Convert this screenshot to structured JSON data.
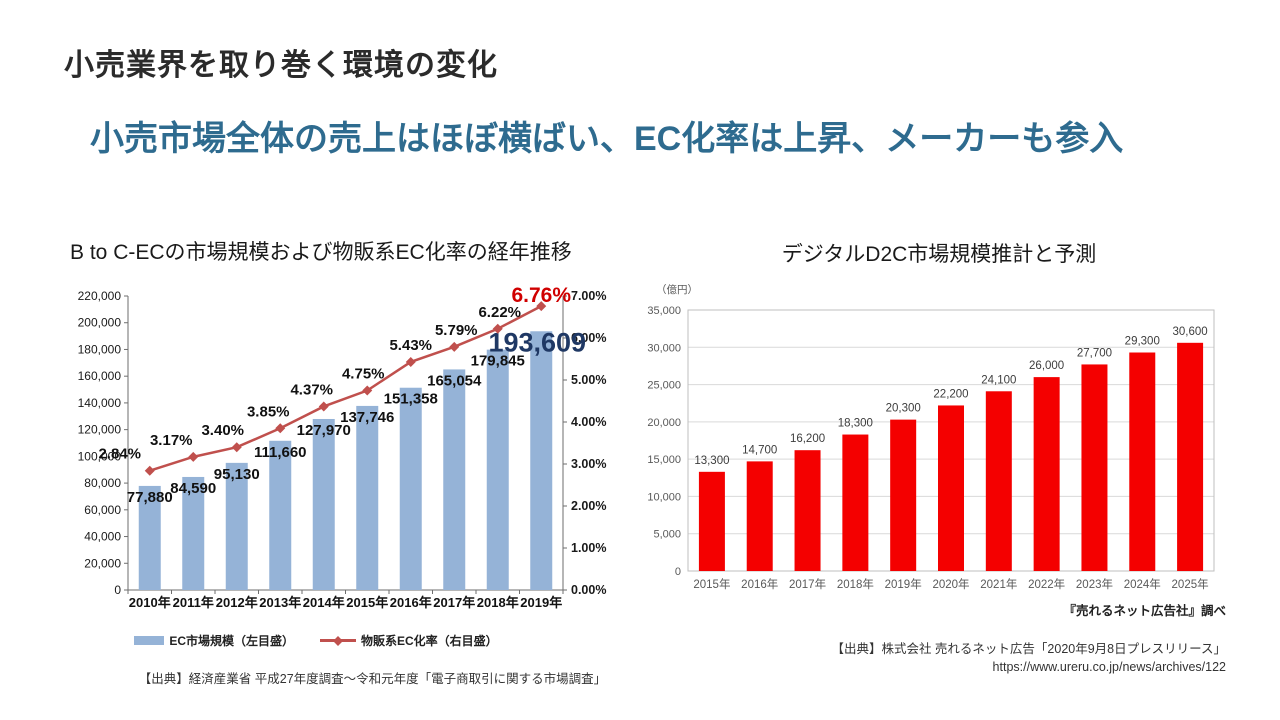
{
  "slide": {
    "title": "小売業界を取り巻く環境の変化",
    "subtitle": "小売市場全体の売上はほぼ横ばい、EC化率は上昇、メーカーも参入",
    "title_color": "#2b2b2b",
    "subtitle_color": "#2e6b8f"
  },
  "chart_data": [
    {
      "id": "btoc-ec-combo",
      "type": "bar+line",
      "title": "B to C-ECの市場規模および物販系EC化率の経年推移",
      "categories": [
        "2010年",
        "2011年",
        "2012年",
        "2013年",
        "2014年",
        "2015年",
        "2016年",
        "2017年",
        "2018年",
        "2019年"
      ],
      "series": [
        {
          "name": "EC市場規模（左目盛）",
          "type": "bar",
          "axis": "left",
          "color": "#95B3D7",
          "values": [
            77880,
            84590,
            95130,
            111660,
            127970,
            137746,
            151358,
            165054,
            179845,
            193609
          ],
          "labels": [
            "77,880",
            "84,590",
            "95,130",
            "111,660",
            "127,970",
            "137,746",
            "151,358",
            "165,054",
            "179,845",
            "193,609"
          ]
        },
        {
          "name": "物販系EC化率（右目盛）",
          "type": "line",
          "axis": "right",
          "color": "#C0504D",
          "values": [
            2.84,
            3.17,
            3.4,
            3.85,
            4.37,
            4.75,
            5.43,
            5.79,
            6.22,
            6.76
          ],
          "labels": [
            "2.84%",
            "3.17%",
            "3.40%",
            "3.85%",
            "4.37%",
            "4.75%",
            "5.43%",
            "5.79%",
            "6.22%",
            "6.76%"
          ]
        }
      ],
      "left_axis": {
        "min": 0,
        "max": 220000,
        "step": 20000,
        "tick_labels": [
          "0",
          "20,000",
          "40,000",
          "60,000",
          "80,000",
          "100,000",
          "120,000",
          "140,000",
          "160,000",
          "180,000",
          "200,000",
          "220,000"
        ]
      },
      "right_axis": {
        "min": 0,
        "max": 7,
        "step": 1,
        "tick_labels": [
          "0.00%",
          "1.00%",
          "2.00%",
          "3.00%",
          "4.00%",
          "5.00%",
          "6.00%",
          "7.00%"
        ]
      },
      "highlight": {
        "final_bar_label": "193,609",
        "final_bar_label_color": "#1F3864",
        "final_line_label": "6.76%",
        "final_line_label_color": "#D00000"
      },
      "grid": false,
      "legend_position": "bottom",
      "source": "【出典】経済産業省 平成27年度調査～令和元年度「電子商取引に関する市場調査」"
    },
    {
      "id": "digital-d2c",
      "type": "bar",
      "title": "デジタルD2C市場規模推計と予測",
      "unit_label": "（億円）",
      "categories": [
        "2015年",
        "2016年",
        "2017年",
        "2018年",
        "2019年",
        "2020年",
        "2021年",
        "2022年",
        "2023年",
        "2024年",
        "2025年"
      ],
      "values": [
        13300,
        14700,
        16200,
        18300,
        20300,
        22200,
        24100,
        26000,
        27700,
        29300,
        30600
      ],
      "labels": [
        "13,300",
        "14,700",
        "16,200",
        "18,300",
        "20,300",
        "22,200",
        "24,100",
        "26,000",
        "27,700",
        "29,300",
        "30,600"
      ],
      "bar_color": "#F40000",
      "ylim": [
        0,
        35000
      ],
      "ystep": 5000,
      "ytick_labels": [
        "0",
        "5,000",
        "10,000",
        "15,000",
        "20,000",
        "25,000",
        "30,000",
        "35,000"
      ],
      "grid": true,
      "gridline_color": "#D9D9D9",
      "border_color": "#BFBFBF",
      "axis_text_color": "#595959",
      "caption": "『売れるネット広告社』調べ",
      "source_line1": "【出典】株式会社 売れるネット広告「2020年9月8日プレスリリース」",
      "source_line2": "https://www.ureru.co.jp/news/archives/122"
    }
  ]
}
